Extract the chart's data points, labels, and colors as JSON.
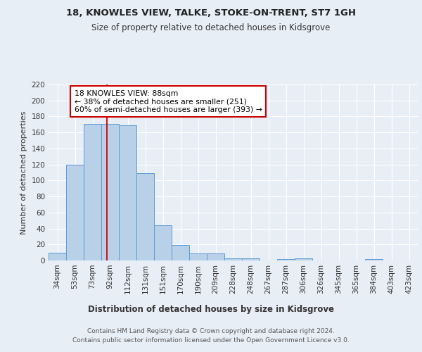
{
  "title": "18, KNOWLES VIEW, TALKE, STOKE-ON-TRENT, ST7 1GH",
  "subtitle": "Size of property relative to detached houses in Kidsgrove",
  "xlabel_bottom": "Distribution of detached houses by size in Kidsgrove",
  "ylabel": "Number of detached properties",
  "footer1": "Contains HM Land Registry data © Crown copyright and database right 2024.",
  "footer2": "Contains public sector information licensed under the Open Government Licence v3.0.",
  "categories": [
    "34sqm",
    "53sqm",
    "73sqm",
    "92sqm",
    "112sqm",
    "131sqm",
    "151sqm",
    "170sqm",
    "190sqm",
    "209sqm",
    "228sqm",
    "248sqm",
    "267sqm",
    "287sqm",
    "306sqm",
    "326sqm",
    "345sqm",
    "365sqm",
    "384sqm",
    "403sqm",
    "423sqm"
  ],
  "bar_values": [
    10,
    120,
    171,
    171,
    169,
    109,
    44,
    19,
    9,
    9,
    3,
    3,
    0,
    2,
    3,
    0,
    0,
    0,
    2,
    0,
    0
  ],
  "bar_color": "#b8d0e8",
  "bar_edge_color": "#5b9bd5",
  "background_color": "#e8eef6",
  "fig_background_color": "#e8eef6",
  "grid_color": "#ffffff",
  "red_line_x": 2.8,
  "annotation_text": "18 KNOWLES VIEW: 88sqm\n← 38% of detached houses are smaller (251)\n60% of semi-detached houses are larger (393) →",
  "annotation_box_color": "#ffffff",
  "annotation_border_color": "#cc0000",
  "ylim": [
    0,
    220
  ],
  "yticks": [
    0,
    20,
    40,
    60,
    80,
    100,
    120,
    140,
    160,
    180,
    200,
    220
  ]
}
